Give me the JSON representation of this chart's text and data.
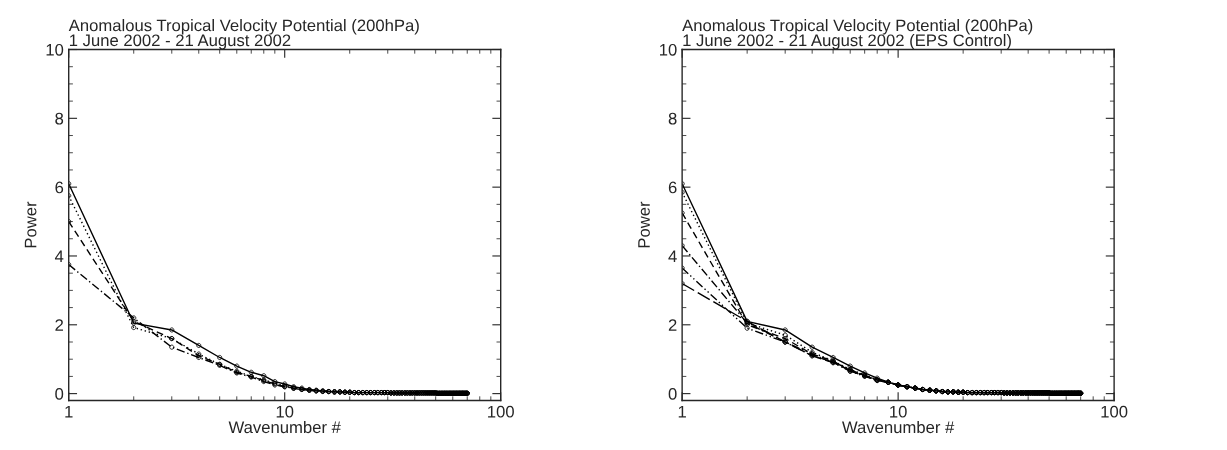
{
  "chart_data": [
    {
      "type": "line",
      "title": "Anomalous Tropical Velocity Potential (200hPa)",
      "subtitle": "1 June 2002 - 21 August 2002",
      "xlabel": "Wavenumber #",
      "ylabel": "Power",
      "log": "x",
      "xlim": [
        1,
        100
      ],
      "xticks": [
        1,
        10,
        100
      ],
      "ylim": [
        -0.2,
        10
      ],
      "yticks": [
        0,
        2,
        4,
        6,
        8,
        10
      ],
      "grid": false,
      "legend": false,
      "marker": "circle",
      "x": [
        1,
        2,
        3,
        4,
        5,
        6,
        7,
        8,
        9,
        10,
        11,
        12,
        13,
        14,
        15,
        16,
        17,
        18,
        19,
        20,
        21,
        22,
        23,
        24,
        25,
        26,
        27,
        28,
        29,
        30,
        31,
        32,
        33,
        34,
        35,
        36,
        37,
        38,
        39,
        40,
        41,
        42,
        43,
        44,
        45,
        46,
        47,
        48,
        49,
        50,
        51,
        52,
        53,
        54,
        55,
        56,
        57,
        58,
        59,
        60,
        61,
        62,
        63,
        64,
        65,
        66,
        67,
        68,
        69,
        70
      ],
      "series": [
        {
          "color": "#000000",
          "line_style": "solid",
          "values": [
            6.1,
            2.05,
            1.85,
            1.4,
            1.05,
            0.8,
            0.62,
            0.52,
            0.35,
            0.28,
            0.2,
            0.16,
            0.12,
            0.1,
            0.08,
            0.06,
            0.05,
            0.05,
            0.04,
            0.04,
            0.03,
            0.03,
            0.03,
            0.03,
            0.03,
            0.03,
            0.03,
            0.03,
            0.03,
            0.03,
            0.02,
            0.02,
            0.02,
            0.02,
            0.02,
            0.02,
            0.02,
            0.02,
            0.02,
            0.02,
            0.02,
            0.02,
            0.02,
            0.02,
            0.02,
            0.02,
            0.02,
            0.02,
            0.02,
            0.02,
            0.01,
            0.01,
            0.01,
            0.01,
            0.01,
            0.01,
            0.01,
            0.01,
            0.01,
            0.01,
            0.01,
            0.01,
            0.01,
            0.01,
            0.01,
            0.01,
            0.01,
            0.01,
            0.01,
            0.01
          ]
        },
        {
          "color": "#000000",
          "line_style": "dotted",
          "values": [
            5.75,
            1.92,
            1.6,
            1.15,
            0.85,
            0.65,
            0.5,
            0.4,
            0.3,
            0.22,
            0.17,
            0.13,
            0.1,
            0.08,
            0.07,
            0.06,
            0.05,
            0.05,
            0.04,
            0.04,
            0.03,
            0.03,
            0.03,
            0.03,
            0.03,
            0.03,
            0.03,
            0.03,
            0.03,
            0.03,
            0.02,
            0.02,
            0.02,
            0.02,
            0.02,
            0.02,
            0.02,
            0.02,
            0.02,
            0.02,
            0.02,
            0.02,
            0.02,
            0.02,
            0.02,
            0.02,
            0.02,
            0.02,
            0.02,
            0.02,
            0.01,
            0.01,
            0.01,
            0.01,
            0.01,
            0.01,
            0.01,
            0.01,
            0.01,
            0.01,
            0.01,
            0.01,
            0.01,
            0.01,
            0.01,
            0.01,
            0.01,
            0.01,
            0.01,
            0.01
          ]
        },
        {
          "color": "#000000",
          "line_style": "dashed",
          "values": [
            5.0,
            2.1,
            1.6,
            1.1,
            0.85,
            0.62,
            0.5,
            0.38,
            0.28,
            0.2,
            0.16,
            0.12,
            0.1,
            0.08,
            0.07,
            0.06,
            0.05,
            0.05,
            0.04,
            0.04,
            0.03,
            0.03,
            0.03,
            0.03,
            0.03,
            0.03,
            0.03,
            0.03,
            0.03,
            0.03,
            0.02,
            0.02,
            0.02,
            0.02,
            0.02,
            0.02,
            0.02,
            0.02,
            0.02,
            0.02,
            0.02,
            0.02,
            0.02,
            0.02,
            0.02,
            0.02,
            0.02,
            0.02,
            0.02,
            0.02,
            0.01,
            0.01,
            0.01,
            0.01,
            0.01,
            0.01,
            0.01,
            0.01,
            0.01,
            0.01,
            0.01,
            0.01,
            0.01,
            0.01,
            0.01,
            0.01,
            0.01,
            0.01,
            0.01,
            0.01
          ]
        },
        {
          "color": "#000000",
          "line_style": "dashdot",
          "values": [
            3.75,
            2.2,
            1.35,
            1.05,
            0.82,
            0.6,
            0.48,
            0.35,
            0.25,
            0.2,
            0.15,
            0.12,
            0.1,
            0.08,
            0.06,
            0.06,
            0.05,
            0.05,
            0.04,
            0.04,
            0.03,
            0.03,
            0.03,
            0.03,
            0.03,
            0.03,
            0.03,
            0.03,
            0.03,
            0.03,
            0.02,
            0.02,
            0.02,
            0.02,
            0.02,
            0.02,
            0.02,
            0.02,
            0.02,
            0.02,
            0.02,
            0.02,
            0.02,
            0.02,
            0.02,
            0.02,
            0.02,
            0.02,
            0.02,
            0.02,
            0.01,
            0.01,
            0.01,
            0.01,
            0.01,
            0.01,
            0.01,
            0.01,
            0.01,
            0.01,
            0.01,
            0.01,
            0.01,
            0.01,
            0.01,
            0.01,
            0.01,
            0.01,
            0.01,
            0.01
          ]
        }
      ]
    },
    {
      "type": "line",
      "title": "Anomalous Tropical Velocity Potential (200hPa)",
      "subtitle": "1 June 2002 - 21 August 2002 (EPS Control)",
      "xlabel": "Wavenumber #",
      "ylabel": "Power",
      "log": "x",
      "xlim": [
        1,
        100
      ],
      "xticks": [
        1,
        10,
        100
      ],
      "ylim": [
        -0.2,
        10
      ],
      "yticks": [
        0,
        2,
        4,
        6,
        8,
        10
      ],
      "grid": false,
      "legend": false,
      "marker": "circle",
      "x": [
        1,
        2,
        3,
        4,
        5,
        6,
        7,
        8,
        9,
        10,
        11,
        12,
        13,
        14,
        15,
        16,
        17,
        18,
        19,
        20,
        21,
        22,
        23,
        24,
        25,
        26,
        27,
        28,
        29,
        30,
        31,
        32,
        33,
        34,
        35,
        36,
        37,
        38,
        39,
        40,
        41,
        42,
        43,
        44,
        45,
        46,
        47,
        48,
        49,
        50,
        51,
        52,
        53,
        54,
        55,
        56,
        57,
        58,
        59,
        60,
        61,
        62,
        63,
        64,
        65,
        66,
        67,
        68,
        69,
        70
      ],
      "series": [
        {
          "color": "#000000",
          "line_style": "solid",
          "values": [
            6.1,
            2.1,
            1.85,
            1.35,
            1.05,
            0.8,
            0.6,
            0.45,
            0.33,
            0.25,
            0.2,
            0.16,
            0.12,
            0.1,
            0.08,
            0.06,
            0.05,
            0.05,
            0.04,
            0.04,
            0.03,
            0.03,
            0.03,
            0.03,
            0.03,
            0.03,
            0.03,
            0.03,
            0.03,
            0.03,
            0.02,
            0.02,
            0.02,
            0.02,
            0.02,
            0.02,
            0.02,
            0.02,
            0.02,
            0.02,
            0.02,
            0.02,
            0.02,
            0.02,
            0.02,
            0.02,
            0.02,
            0.02,
            0.02,
            0.02,
            0.01,
            0.01,
            0.01,
            0.01,
            0.01,
            0.01,
            0.01,
            0.01,
            0.01,
            0.01,
            0.01,
            0.01,
            0.01,
            0.01,
            0.01,
            0.01,
            0.01,
            0.01,
            0.01,
            0.01
          ]
        },
        {
          "color": "#000000",
          "line_style": "dotted",
          "values": [
            5.85,
            2.05,
            1.7,
            1.2,
            0.95,
            0.7,
            0.55,
            0.4,
            0.33,
            0.25,
            0.2,
            0.16,
            0.12,
            0.1,
            0.08,
            0.06,
            0.05,
            0.05,
            0.04,
            0.04,
            0.03,
            0.03,
            0.03,
            0.03,
            0.03,
            0.03,
            0.03,
            0.03,
            0.03,
            0.03,
            0.02,
            0.02,
            0.02,
            0.02,
            0.02,
            0.02,
            0.02,
            0.02,
            0.02,
            0.02,
            0.02,
            0.02,
            0.02,
            0.02,
            0.02,
            0.02,
            0.02,
            0.02,
            0.02,
            0.02,
            0.01,
            0.01,
            0.01,
            0.01,
            0.01,
            0.01,
            0.01,
            0.01,
            0.01,
            0.01,
            0.01,
            0.01,
            0.01,
            0.01,
            0.01,
            0.01,
            0.01,
            0.01,
            0.01,
            0.01
          ]
        },
        {
          "color": "#000000",
          "line_style": "dashed",
          "values": [
            5.25,
            2.0,
            1.6,
            1.15,
            0.95,
            0.65,
            0.52,
            0.4,
            0.33,
            0.25,
            0.2,
            0.16,
            0.12,
            0.1,
            0.08,
            0.06,
            0.05,
            0.05,
            0.04,
            0.04,
            0.03,
            0.03,
            0.03,
            0.03,
            0.03,
            0.03,
            0.03,
            0.03,
            0.03,
            0.03,
            0.02,
            0.02,
            0.02,
            0.02,
            0.02,
            0.02,
            0.02,
            0.02,
            0.02,
            0.02,
            0.02,
            0.02,
            0.02,
            0.02,
            0.02,
            0.02,
            0.02,
            0.02,
            0.02,
            0.02,
            0.01,
            0.01,
            0.01,
            0.01,
            0.01,
            0.01,
            0.01,
            0.01,
            0.01,
            0.01,
            0.01,
            0.01,
            0.01,
            0.01,
            0.01,
            0.01,
            0.01,
            0.01,
            0.01,
            0.01
          ]
        },
        {
          "color": "#000000",
          "line_style": "dashdot",
          "values": [
            4.3,
            2.05,
            1.5,
            1.1,
            0.92,
            0.7,
            0.52,
            0.38,
            0.33,
            0.25,
            0.2,
            0.16,
            0.12,
            0.1,
            0.08,
            0.06,
            0.05,
            0.05,
            0.04,
            0.04,
            0.03,
            0.03,
            0.03,
            0.03,
            0.03,
            0.03,
            0.03,
            0.03,
            0.03,
            0.03,
            0.02,
            0.02,
            0.02,
            0.02,
            0.02,
            0.02,
            0.02,
            0.02,
            0.02,
            0.02,
            0.02,
            0.02,
            0.02,
            0.02,
            0.02,
            0.02,
            0.02,
            0.02,
            0.02,
            0.02,
            0.01,
            0.01,
            0.01,
            0.01,
            0.01,
            0.01,
            0.01,
            0.01,
            0.01,
            0.01,
            0.01,
            0.01,
            0.01,
            0.01,
            0.01,
            0.01,
            0.01,
            0.01,
            0.01,
            0.01
          ]
        },
        {
          "color": "#000000",
          "line_style": "dashdotdot",
          "values": [
            3.65,
            1.9,
            1.5,
            1.15,
            0.9,
            0.65,
            0.5,
            0.38,
            0.33,
            0.25,
            0.2,
            0.16,
            0.12,
            0.1,
            0.08,
            0.06,
            0.05,
            0.05,
            0.04,
            0.04,
            0.03,
            0.03,
            0.03,
            0.03,
            0.03,
            0.03,
            0.03,
            0.03,
            0.03,
            0.03,
            0.02,
            0.02,
            0.02,
            0.02,
            0.02,
            0.02,
            0.02,
            0.02,
            0.02,
            0.02,
            0.02,
            0.02,
            0.02,
            0.02,
            0.02,
            0.02,
            0.02,
            0.02,
            0.02,
            0.02,
            0.01,
            0.01,
            0.01,
            0.01,
            0.01,
            0.01,
            0.01,
            0.01,
            0.01,
            0.01,
            0.01,
            0.01,
            0.01,
            0.01,
            0.01,
            0.01,
            0.01,
            0.01,
            0.01,
            0.01
          ]
        },
        {
          "color": "#000000",
          "line_style": "longdash",
          "values": [
            3.2,
            2.1,
            1.5,
            1.1,
            0.9,
            0.68,
            0.52,
            0.4,
            0.33,
            0.25,
            0.2,
            0.16,
            0.12,
            0.1,
            0.08,
            0.06,
            0.05,
            0.05,
            0.04,
            0.04,
            0.03,
            0.03,
            0.03,
            0.03,
            0.03,
            0.03,
            0.03,
            0.03,
            0.03,
            0.03,
            0.02,
            0.02,
            0.02,
            0.02,
            0.02,
            0.02,
            0.02,
            0.02,
            0.02,
            0.02,
            0.02,
            0.02,
            0.02,
            0.02,
            0.02,
            0.02,
            0.02,
            0.02,
            0.02,
            0.02,
            0.01,
            0.01,
            0.01,
            0.01,
            0.01,
            0.01,
            0.01,
            0.01,
            0.01,
            0.01,
            0.01,
            0.01,
            0.01,
            0.01,
            0.01,
            0.01,
            0.01,
            0.01,
            0.01,
            0.01
          ]
        }
      ]
    }
  ]
}
